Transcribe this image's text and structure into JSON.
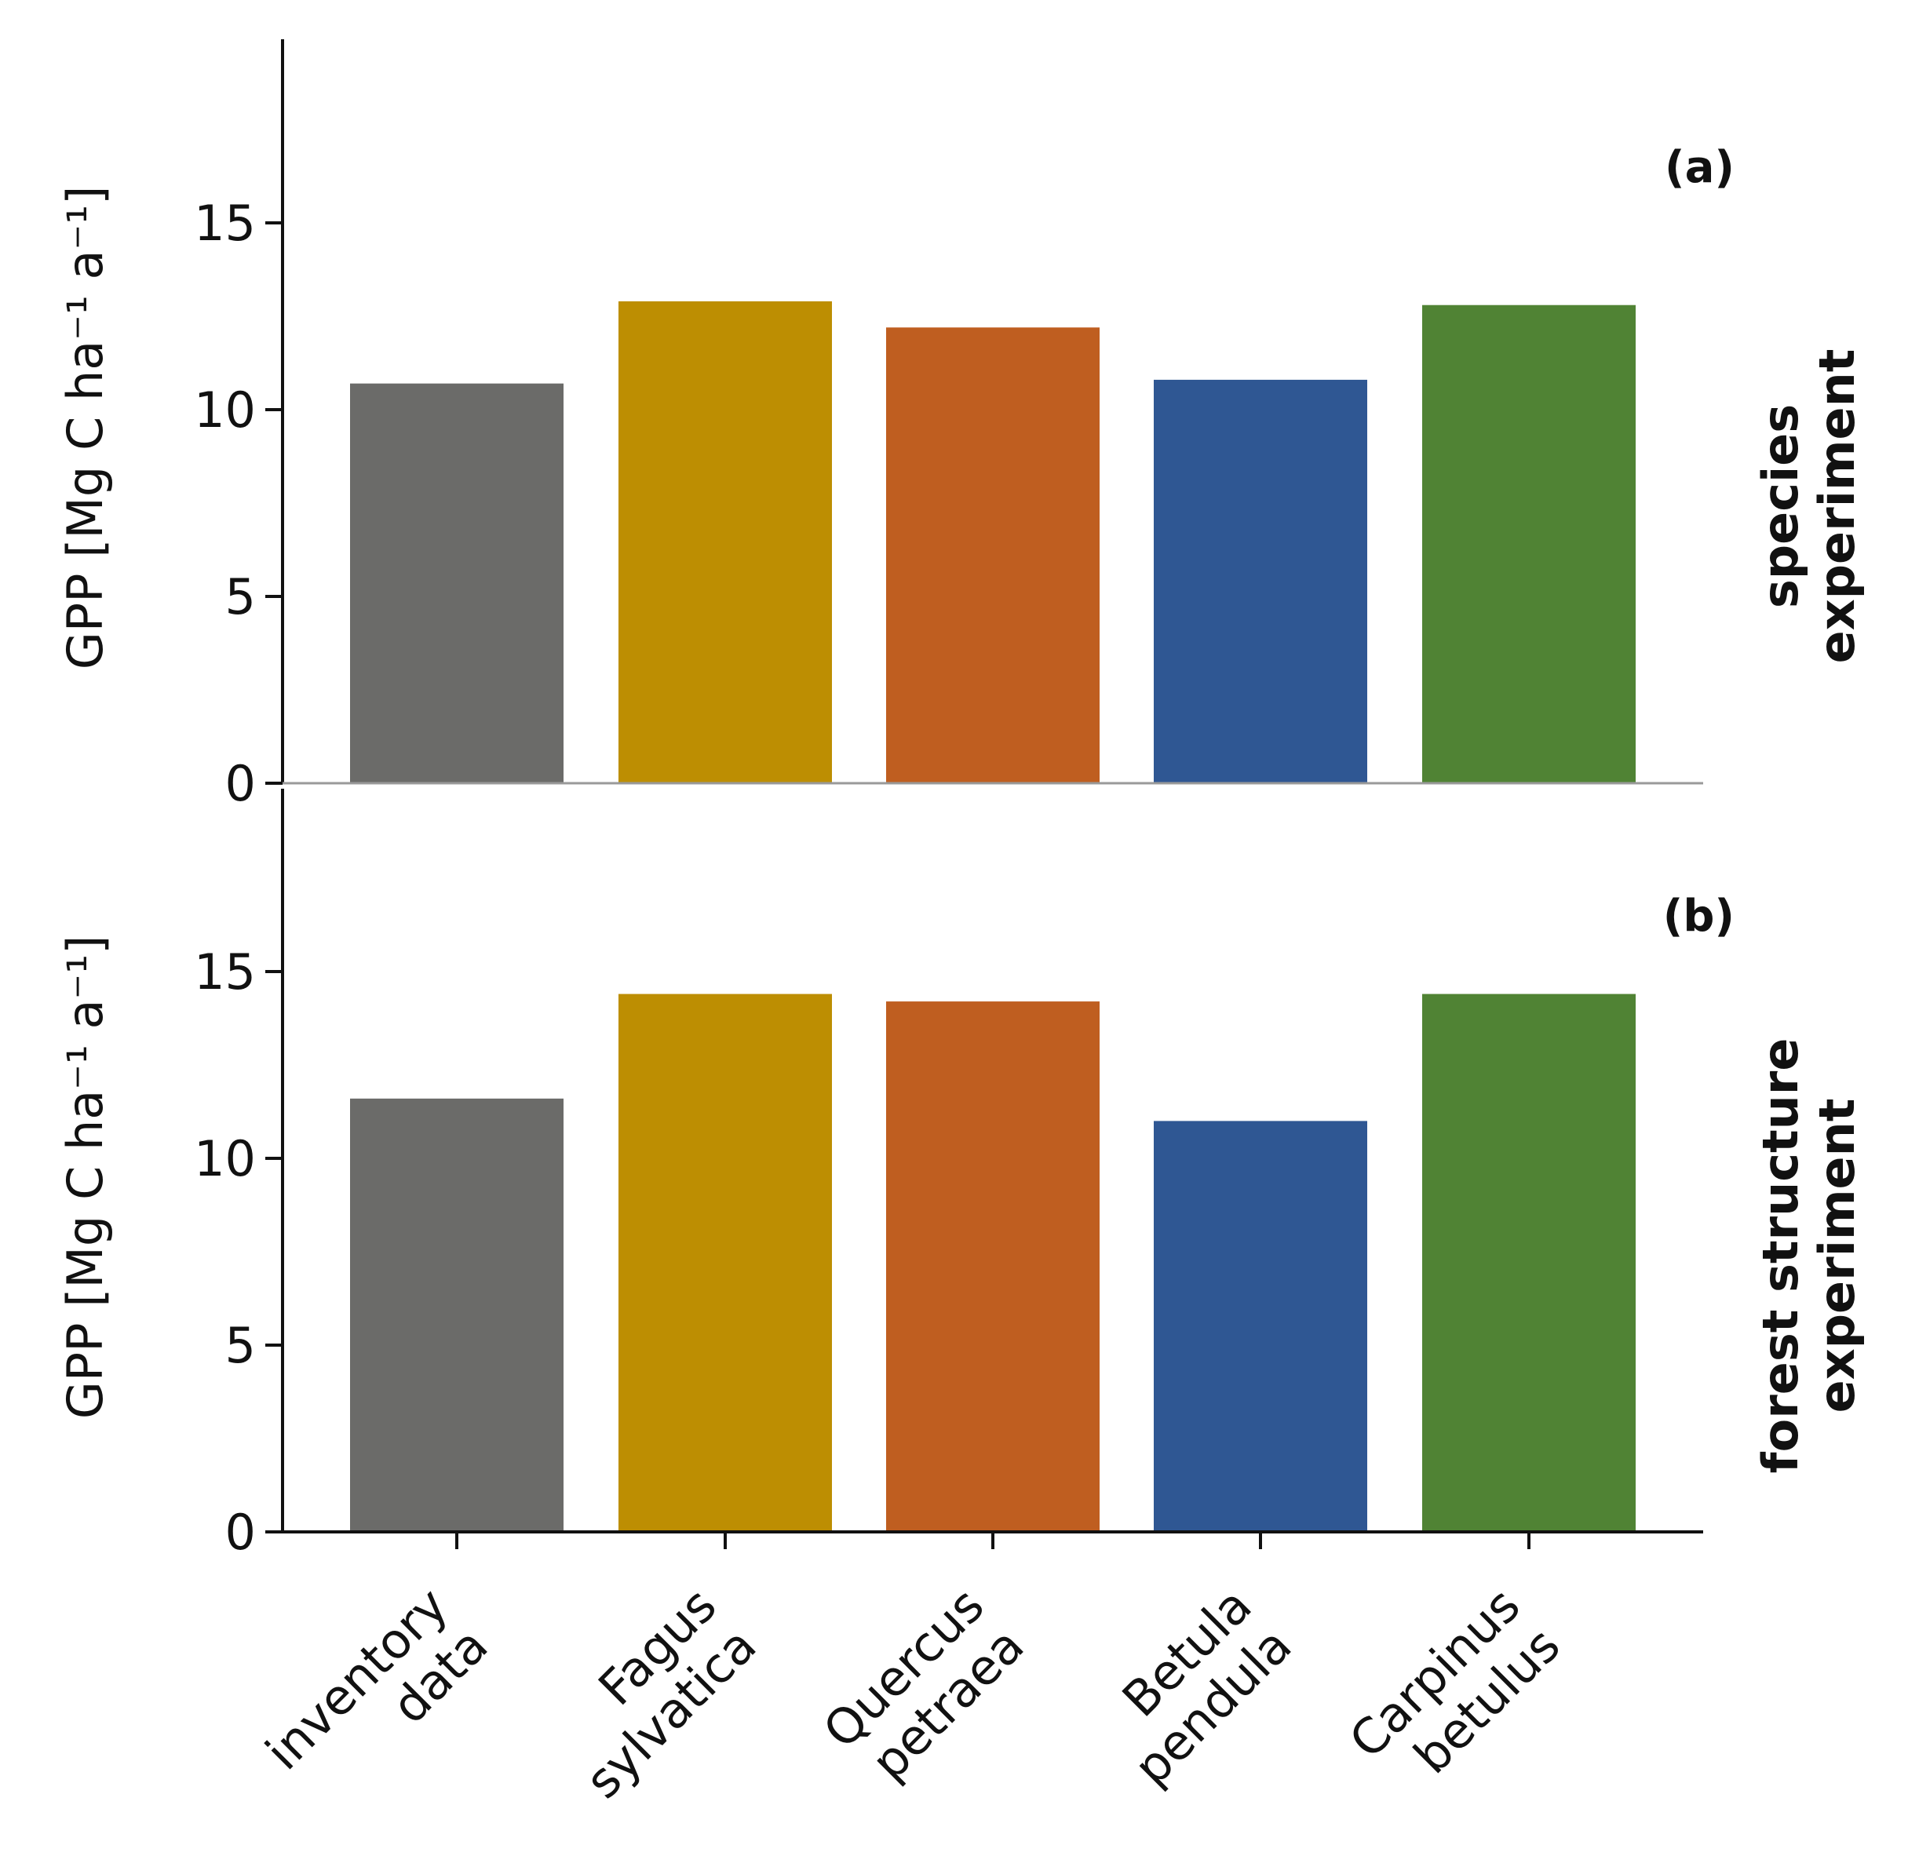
{
  "colors": {
    "inventory_data": "#6b6b69",
    "fagus_sylvatica": "#bd8e02",
    "quercus_petraea": "#bf5e20",
    "betula_pendula": "#2f5793",
    "carpinus_betulus": "#508334",
    "axis": "#111111",
    "zero_line": "#999999"
  },
  "chart_data": [
    {
      "type": "bar",
      "panel_label": "(a)",
      "row_label": [
        "species",
        "experiment"
      ],
      "ylabel": "GPP [Mg C ha⁻¹ a⁻¹]",
      "ylim": [
        0,
        20
      ],
      "yticks": [
        {
          "value": 0,
          "label": "0"
        },
        {
          "value": 5,
          "label": "5"
        },
        {
          "value": 10,
          "label": "10"
        },
        {
          "value": 15,
          "label": "15"
        }
      ],
      "categories": [
        "inventory data",
        "Fagus sylvatica",
        "Quercus petraea",
        "Betula pendula",
        "Carpinus betulus"
      ],
      "values": [
        10.7,
        12.9,
        12.2,
        10.8,
        12.8
      ]
    },
    {
      "type": "bar",
      "panel_label": "(b)",
      "row_label": [
        "forest structure",
        "experiment"
      ],
      "ylabel": "GPP [Mg C ha⁻¹ a⁻¹]",
      "ylim": [
        0,
        20
      ],
      "yticks": [
        {
          "value": 0,
          "label": "0"
        },
        {
          "value": 5,
          "label": "5"
        },
        {
          "value": 10,
          "label": "10"
        },
        {
          "value": 15,
          "label": "15"
        }
      ],
      "categories": [
        "inventory data",
        "Fagus sylvatica",
        "Quercus petraea",
        "Betula pendula",
        "Carpinus betulus"
      ],
      "values": [
        11.6,
        14.4,
        14.2,
        11.0,
        14.4
      ]
    }
  ],
  "x_axis": {
    "tick_labels": [
      [
        "inventory",
        "data"
      ],
      [
        "Fagus",
        "sylvatica"
      ],
      [
        "Quercus",
        "petraea"
      ],
      [
        "Betula",
        "pendula"
      ],
      [
        "Carpinus",
        "betulus"
      ]
    ]
  }
}
